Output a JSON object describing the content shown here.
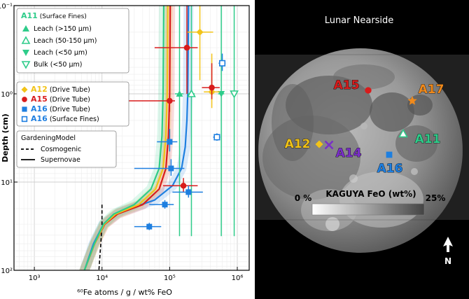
{
  "chart_data": [
    {
      "type": "scatter",
      "xlabel": "⁶⁰Fe atoms / g / wt% FeO",
      "ylabel": "Depth (cm)",
      "xscale": "log",
      "yscale": "log",
      "y_inverted": true,
      "xlim": [
        500,
        1500000
      ],
      "ylim": [
        0.1,
        100
      ],
      "x_ticks": [
        {
          "value": 1000,
          "label": "10³"
        },
        {
          "value": 10000,
          "label": "10⁴"
        },
        {
          "value": 100000,
          "label": "10⁵"
        },
        {
          "value": 1000000,
          "label": "10⁶"
        }
      ],
      "y_ticks": [
        {
          "value": 0.1,
          "label": "10⁻¹"
        },
        {
          "value": 1,
          "label": "10⁰"
        },
        {
          "value": 10,
          "label": "10¹"
        },
        {
          "value": 100,
          "label": "10²"
        }
      ],
      "grid": true,
      "legend_groups": [
        {
          "title": "A11",
          "title_suffix": " (Surface Fines)",
          "color": "#2ecc8a",
          "items": [
            {
              "marker": "triangle-up-filled",
              "label": "Leach (>150 μm)"
            },
            {
              "marker": "triangle-up-open",
              "label": "Leach (50-150 μm)"
            },
            {
              "marker": "triangle-down-filled",
              "label": "Leach (<50 μm)"
            },
            {
              "marker": "triangle-down-open",
              "label": "Bulk (<50 μm)"
            }
          ]
        },
        {
          "items": [
            {
              "marker": "diamond-filled",
              "color": "#f2c318",
              "label_bold": "A12",
              "label": " (Drive Tube)"
            },
            {
              "marker": "circle-filled",
              "color": "#d81c1c",
              "label_bold": "A15",
              "label": " (Drive Tube)"
            },
            {
              "marker": "square-filled",
              "color": "#1e7fe0",
              "label_bold": "A16",
              "label": " (Drive Tube)"
            },
            {
              "marker": "square-open",
              "color": "#1e7fe0",
              "label_bold": "A16",
              "label": " (Surface Fines)"
            }
          ]
        },
        {
          "title": "GardeningModel",
          "items": [
            {
              "linestyle": "dashed",
              "label": "Cosmogenic"
            },
            {
              "linestyle": "solid",
              "label": "Supernovae"
            }
          ]
        }
      ],
      "series": [
        {
          "name": "A11 Leach (>150 μm)",
          "color": "#2ecc8a",
          "marker": "triangle-up-filled",
          "points": [
            {
              "x": 140000,
              "y": 1.0,
              "xerr": [
                20000,
                20000
              ],
              "yerr": [
                0.95,
                40
              ]
            }
          ]
        },
        {
          "name": "A11 Leach (50-150 μm)",
          "color": "#2ecc8a",
          "marker": "triangle-up-open",
          "points": [
            {
              "x": 210000,
              "y": 1.0,
              "xerr": [
                25000,
                25000
              ],
              "yerr": [
                0.95,
                40
              ]
            }
          ]
        },
        {
          "name": "A11 Leach (<50 μm)",
          "color": "#2ecc8a",
          "marker": "triangle-down-filled",
          "points": [
            {
              "x": 580000,
              "y": 1.0,
              "xerr": [
                60000,
                60000
              ],
              "yerr": [
                0.95,
                40
              ]
            }
          ]
        },
        {
          "name": "A11 Bulk (<50 μm)",
          "color": "#2ecc8a",
          "marker": "triangle-down-open",
          "points": [
            {
              "x": 900000,
              "y": 1.0,
              "xerr": [
                80000,
                80000
              ],
              "yerr": [
                0.95,
                40
              ]
            }
          ]
        },
        {
          "name": "A12 (Drive Tube)",
          "color": "#f2c318",
          "marker": "diamond-filled",
          "points": [
            {
              "x": 280000,
              "y": 0.2,
              "xerr": [
                100000,
                160000
              ],
              "yerr": [
                0.1,
                0.5
              ]
            },
            {
              "x": 420000,
              "y": 0.95,
              "xerr": [
                100000,
                130000
              ],
              "yerr": [
                0.6,
                0.5
              ]
            }
          ]
        },
        {
          "name": "A15 (Drive Tube)",
          "color": "#d81c1c",
          "marker": "circle-filled",
          "points": [
            {
              "x": 180000,
              "y": 0.3,
              "xerr": [
                120000,
                80000
              ],
              "yerr": [
                0.2,
                0.7
              ]
            },
            {
              "x": 420000,
              "y": 0.85,
              "xerr": [
                120000,
                130000
              ],
              "yerr": [
                0.4,
                0.3
              ]
            },
            {
              "x": 100000,
              "y": 1.2,
              "xerr": [
                99000,
                20000
              ],
              "yerr": [
                0.3,
                0.4
              ]
            },
            {
              "x": 160000,
              "y": 11.0,
              "xerr": [
                80000,
                100000
              ],
              "yerr": [
                2,
                2
              ]
            }
          ]
        },
        {
          "name": "A16 (Drive Tube)",
          "color": "#1e7fe0",
          "marker": "square-filled",
          "points": [
            {
              "x": 100000,
              "y": 3.5,
              "xerr": [
                35000,
                30000
              ],
              "yerr": [
                1,
                1
              ]
            },
            {
              "x": 105000,
              "y": 7.0,
              "xerr": [
                75000,
                60000
              ],
              "yerr": [
                1.5,
                1.5
              ]
            },
            {
              "x": 190000,
              "y": 13.0,
              "xerr": [
                80000,
                120000
              ],
              "yerr": [
                2,
                2
              ]
            },
            {
              "x": 85000,
              "y": 18.0,
              "xerr": [
                35000,
                30000
              ],
              "yerr": [
                2,
                2
              ]
            },
            {
              "x": 50000,
              "y": 32.0,
              "xerr": [
                20000,
                25000
              ],
              "yerr": [
                3,
                3
              ]
            }
          ]
        },
        {
          "name": "A16 (Surface Fines)",
          "color": "#1e7fe0",
          "marker": "square-open",
          "points": [
            {
              "x": 600000,
              "y": 0.45,
              "xerr": [
                70000,
                70000
              ],
              "yerr": [
                0.1,
                0.1
              ]
            },
            {
              "x": 500000,
              "y": 3.1,
              "xerr": [
                60000,
                60000
              ],
              "yerr": [
                0.3,
                0.3
              ]
            }
          ]
        },
        {
          "name": "Cosmogenic",
          "color": "#000000",
          "linestyle": "dashed",
          "points": [
            {
              "x": 10000,
              "y": 18
            },
            {
              "x": 10000,
              "y": 30
            },
            {
              "x": 9600,
              "y": 50
            },
            {
              "x": 9000,
              "y": 100
            }
          ]
        },
        {
          "name": "Supernovae model",
          "color": "#1e7fe0",
          "linestyle": "solid",
          "points": [
            {
              "x": 5500,
              "y": 100
            },
            {
              "x": 7500,
              "y": 50
            },
            {
              "x": 10500,
              "y": 30
            },
            {
              "x": 18000,
              "y": 22
            },
            {
              "x": 60000,
              "y": 16
            },
            {
              "x": 110000,
              "y": 11
            },
            {
              "x": 150000,
              "y": 7
            },
            {
              "x": 170000,
              "y": 4
            },
            {
              "x": 180000,
              "y": 2
            },
            {
              "x": 185000,
              "y": 1
            },
            {
              "x": 188000,
              "y": 0.3
            },
            {
              "x": 190000,
              "y": 0.1
            }
          ]
        },
        {
          "name": "Supernovae model",
          "color": "#d81c1c",
          "linestyle": "solid",
          "points": [
            {
              "x": 5500,
              "y": 100
            },
            {
              "x": 7800,
              "y": 50
            },
            {
              "x": 11000,
              "y": 30
            },
            {
              "x": 17000,
              "y": 23
            },
            {
              "x": 40000,
              "y": 18
            },
            {
              "x": 70000,
              "y": 12
            },
            {
              "x": 88000,
              "y": 7
            },
            {
              "x": 96000,
              "y": 3
            },
            {
              "x": 100000,
              "y": 1
            },
            {
              "x": 102000,
              "y": 0.1
            }
          ]
        },
        {
          "name": "Supernovae model",
          "color": "#f2c318",
          "linestyle": "solid",
          "points": [
            {
              "x": 5500,
              "y": 100
            },
            {
              "x": 7800,
              "y": 50
            },
            {
              "x": 10800,
              "y": 30
            },
            {
              "x": 16000,
              "y": 23
            },
            {
              "x": 35000,
              "y": 18
            },
            {
              "x": 62000,
              "y": 12
            },
            {
              "x": 80000,
              "y": 7
            },
            {
              "x": 88000,
              "y": 3
            },
            {
              "x": 92000,
              "y": 1
            },
            {
              "x": 94000,
              "y": 0.1
            }
          ]
        },
        {
          "name": "Supernovae model",
          "color": "#2ecc8a",
          "linestyle": "solid",
          "points": [
            {
              "x": 5500,
              "y": 100
            },
            {
              "x": 7700,
              "y": 50
            },
            {
              "x": 10500,
              "y": 30
            },
            {
              "x": 15000,
              "y": 23
            },
            {
              "x": 30000,
              "y": 18
            },
            {
              "x": 53000,
              "y": 12
            },
            {
              "x": 70000,
              "y": 7
            },
            {
              "x": 77000,
              "y": 3
            },
            {
              "x": 80000,
              "y": 1
            },
            {
              "x": 82000,
              "y": 0.1
            }
          ]
        }
      ]
    },
    {
      "type": "map",
      "title": "Lunar Nearside",
      "colorbar": {
        "label": "KAGUYA FeO (wt%)",
        "min_label": "0 %",
        "max_label": "25%",
        "colors": [
          "#ffffff",
          "#444444"
        ]
      },
      "north_label": "N",
      "sites": [
        {
          "label": "A15",
          "color": "#d81c1c",
          "marker": "circle-filled"
        },
        {
          "label": "A17",
          "color": "#f08a1c",
          "marker": "star"
        },
        {
          "label": "A11",
          "color": "#2ecc8a",
          "marker": "triangle-up-open"
        },
        {
          "label": "A12",
          "color": "#f2c318",
          "marker": "diamond-filled"
        },
        {
          "label": "A14",
          "color": "#7a2fc8",
          "marker": "x"
        },
        {
          "label": "A16",
          "color": "#1e7fe0",
          "marker": "square-filled"
        }
      ]
    }
  ]
}
